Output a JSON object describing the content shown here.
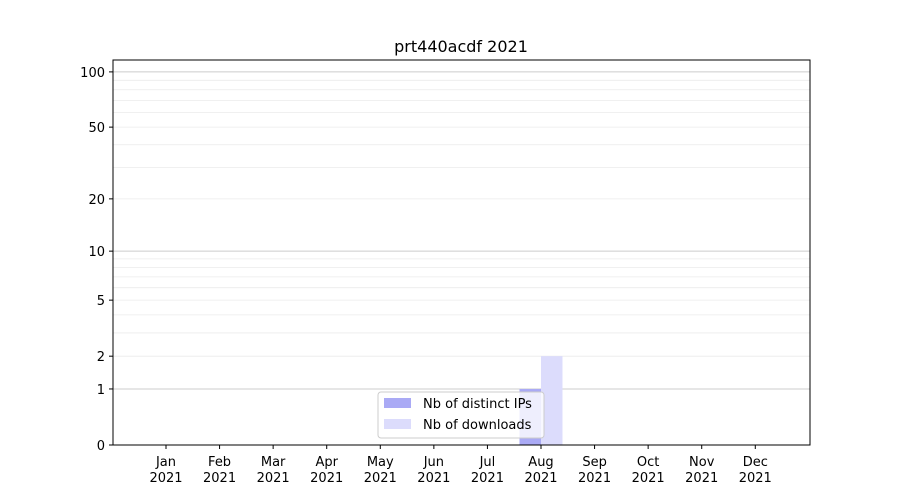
{
  "chart_data": {
    "type": "bar",
    "title": "prt440acdf 2021",
    "xlabel": "",
    "ylabel": "",
    "categories": [
      "Jan\n2021",
      "Feb\n2021",
      "Mar\n2021",
      "Apr\n2021",
      "May\n2021",
      "Jun\n2021",
      "Jul\n2021",
      "Aug\n2021",
      "Sep\n2021",
      "Oct\n2021",
      "Nov\n2021",
      "Dec\n2021"
    ],
    "category_lines": [
      [
        "Jan",
        "2021"
      ],
      [
        "Feb",
        "2021"
      ],
      [
        "Mar",
        "2021"
      ],
      [
        "Apr",
        "2021"
      ],
      [
        "May",
        "2021"
      ],
      [
        "Jun",
        "2021"
      ],
      [
        "Jul",
        "2021"
      ],
      [
        "Aug",
        "2021"
      ],
      [
        "Sep",
        "2021"
      ],
      [
        "Oct",
        "2021"
      ],
      [
        "Nov",
        "2021"
      ],
      [
        "Dec",
        "2021"
      ]
    ],
    "series": [
      {
        "name": "Nb of distinct IPs",
        "color": "#aaaaf5",
        "values": [
          0,
          0,
          0,
          0,
          0,
          0,
          0,
          1,
          0,
          0,
          0,
          0
        ]
      },
      {
        "name": "Nb of downloads",
        "color": "#dcdcfc",
        "values": [
          0,
          0,
          0,
          0,
          0,
          0,
          0,
          2,
          0,
          0,
          0,
          0
        ]
      }
    ],
    "yscale": "log(y+1)",
    "ylim": [
      0,
      116
    ],
    "yticks": [
      0,
      1,
      2,
      5,
      10,
      20,
      50,
      100
    ],
    "ytick_labels": [
      "0",
      "1",
      "2",
      "5",
      "10",
      "20",
      "50",
      "100"
    ],
    "grid": true,
    "legend": "lower-center"
  }
}
